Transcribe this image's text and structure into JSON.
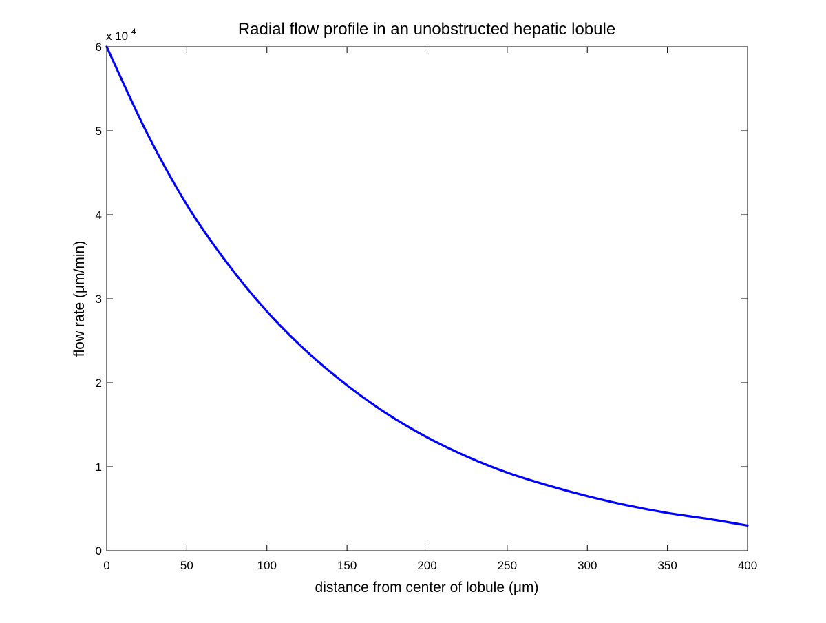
{
  "chart_data": {
    "type": "line",
    "title": "Radial flow profile in an unobstructed hepatic lobule",
    "xlabel": "distance from center of lobule (μm)",
    "ylabel": "flow rate (μm/min)",
    "xlim": [
      0,
      400
    ],
    "ylim": [
      0,
      60000
    ],
    "grid": false,
    "legend": null,
    "y_exponent": {
      "base": "x 10",
      "power": "4"
    },
    "x_ticks": [
      0,
      50,
      100,
      150,
      200,
      250,
      300,
      350,
      400
    ],
    "x_tick_labels": [
      "0",
      "50",
      "100",
      "150",
      "200",
      "250",
      "300",
      "350",
      "400"
    ],
    "y_ticks": [
      0,
      10000,
      20000,
      30000,
      40000,
      50000,
      60000
    ],
    "y_tick_labels": [
      "0",
      "1",
      "2",
      "3",
      "4",
      "5",
      "6"
    ],
    "series": [
      {
        "name": "flow rate",
        "color": "#0000ff",
        "x": [
          0,
          25,
          50,
          75,
          100,
          125,
          150,
          175,
          200,
          225,
          250,
          275,
          300,
          325,
          350,
          375,
          400
        ],
        "y": [
          60000,
          49800,
          41200,
          34300,
          28500,
          23700,
          19700,
          16300,
          13500,
          11200,
          9300,
          7800,
          6500,
          5400,
          4500,
          3800,
          3000
        ]
      }
    ]
  }
}
